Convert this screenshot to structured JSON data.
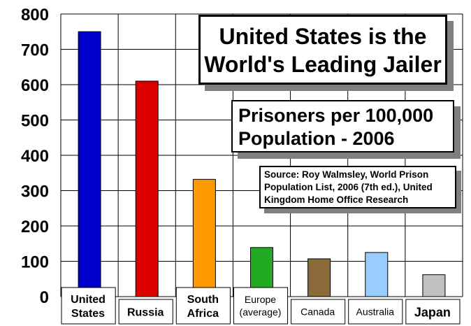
{
  "chart_data": {
    "type": "bar",
    "title_lines": [
      "United States is the",
      "World's Leading Jailer"
    ],
    "subtitle_lines": [
      "Prisoners per 100,000",
      "Population - 2006"
    ],
    "source_lines": [
      "Source: Roy Walmsley, World Prison",
      "Population List, 2006 (7th ed.), United",
      "Kingdom Home Office Research"
    ],
    "categories": [
      {
        "lines": [
          "United",
          "States"
        ]
      },
      {
        "lines": [
          "Russia"
        ]
      },
      {
        "lines": [
          "South",
          "Africa"
        ]
      },
      {
        "lines": [
          "Europe",
          "(average)"
        ]
      },
      {
        "lines": [
          "Canada"
        ]
      },
      {
        "lines": [
          "Australia"
        ]
      },
      {
        "lines": [
          "Japan"
        ]
      }
    ],
    "values": [
      750,
      610,
      332,
      139,
      107,
      125,
      62
    ],
    "colors": [
      "#0000cc",
      "#dd0000",
      "#ff9900",
      "#22aa22",
      "#8b6a3a",
      "#99ccff",
      "#c0c0c0"
    ],
    "ylim": [
      0,
      800
    ],
    "yticks": [
      "0",
      "100",
      "200",
      "300",
      "400",
      "500",
      "600",
      "700",
      "800"
    ],
    "grid": true,
    "legend": "none"
  }
}
